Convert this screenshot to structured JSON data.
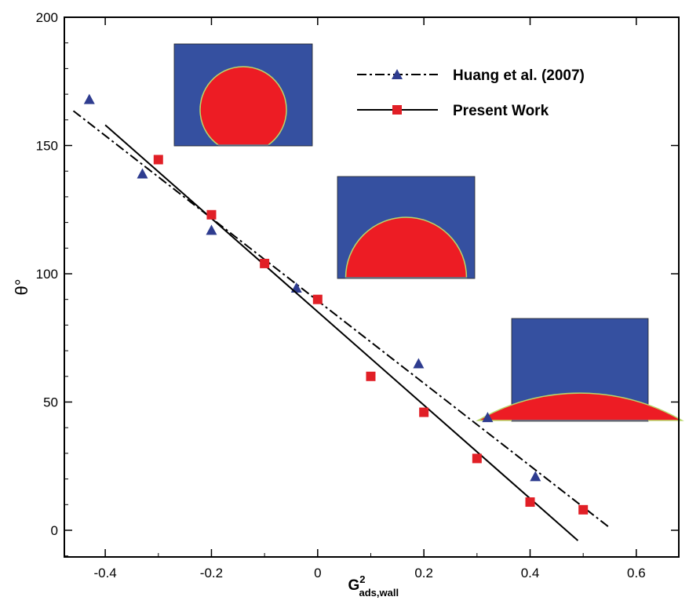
{
  "chart_data": {
    "type": "scatter",
    "title": "",
    "xlabel": {
      "base": "G",
      "sup": "2",
      "sub": "ads,wall"
    },
    "ylabel": "θ°",
    "xlim": [
      -0.477,
      0.68
    ],
    "ylim": [
      -10.4,
      200
    ],
    "xticks": [
      -0.4,
      -0.2,
      0,
      0.2,
      0.4,
      0.6
    ],
    "xtick_labels": [
      "-0.4",
      "-0.2",
      "0",
      "0.2",
      "0.4",
      "0.6"
    ],
    "yticks": [
      0,
      50,
      100,
      150,
      200
    ],
    "ytick_labels": [
      "0",
      "50",
      "100",
      "150",
      "200"
    ],
    "grid": false,
    "legend_position": "top-right",
    "series": [
      {
        "name": "Huang et al. (2007)",
        "marker": "triangle",
        "color": "#2e3c8f",
        "line": "dash-dot",
        "x": [
          -0.43,
          -0.33,
          -0.2,
          -0.04,
          0.19,
          0.32,
          0.41
        ],
        "y": [
          168,
          139,
          117,
          94.5,
          65,
          44,
          21
        ],
        "fit": [
          [
            -0.46,
            163.5
          ],
          [
            0.55,
            1
          ]
        ]
      },
      {
        "name": "Present Work",
        "marker": "square",
        "color": "#e11f26",
        "line": "solid",
        "x": [
          -0.3,
          -0.2,
          -0.1,
          0,
          0.1,
          0.2,
          0.3,
          0.4,
          0.5
        ],
        "y": [
          144.5,
          123,
          104,
          90,
          60,
          46,
          28,
          11,
          8
        ],
        "fit": [
          [
            -0.4,
            158
          ],
          [
            0.49,
            -4
          ]
        ]
      }
    ],
    "insets": [
      {
        "contact_angle": 145
      },
      {
        "contact_angle": 90
      },
      {
        "contact_angle": 30
      }
    ],
    "colors": {
      "inset_bg": "#3550a0",
      "droplet": "#ed1c24",
      "interface": "#b8d86a"
    }
  }
}
